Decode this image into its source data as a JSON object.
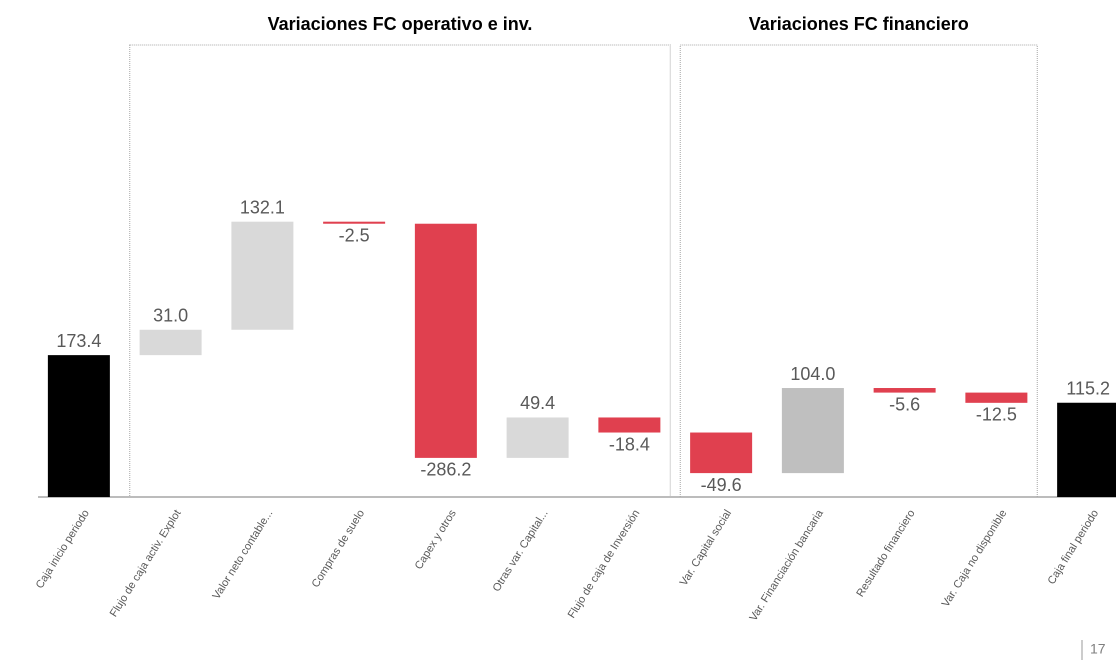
{
  "chart_data": {
    "type": "waterfall",
    "categories": [
      "Caja inicio periodo",
      "Flujo de caja activ. Explot",
      "Valor neto contable...",
      "Compras de suelo",
      "Capex y otros",
      "Otras var. Capital...",
      "Flujo de caja de Inversión",
      "Var. Capital social",
      "Var. Financiación bancaria",
      "Resultado financiero",
      "Var. Caja no disponible",
      "Caja final periodo"
    ],
    "values": [
      173.4,
      31.0,
      132.1,
      -2.5,
      -286.2,
      49.4,
      -18.4,
      -49.6,
      104.0,
      -5.6,
      -12.5,
      115.2
    ],
    "value_labels": [
      "173.4",
      "31.0",
      "132.1",
      "-2.5",
      "-286.2",
      "49.4",
      "-18.4",
      "-49.6",
      "104.0",
      "-5.6",
      "-12.5",
      "115.2"
    ],
    "colors": [
      "#000000",
      "#d9d9d9",
      "#d9d9d9",
      "#e0404f",
      "#e0404f",
      "#d9d9d9",
      "#e0404f",
      "#e0404f",
      "#bfbfbf",
      "#e0404f",
      "#e0404f",
      "#000000"
    ],
    "totals": [
      0,
      11
    ],
    "ylim": [
      0,
      550
    ],
    "groups": [
      {
        "title": "Variaciones FC operativo e inv.",
        "start": 1,
        "end": 6
      },
      {
        "title": "Variaciones FC financiero",
        "start": 7,
        "end": 10
      }
    ]
  },
  "page_number": "17"
}
